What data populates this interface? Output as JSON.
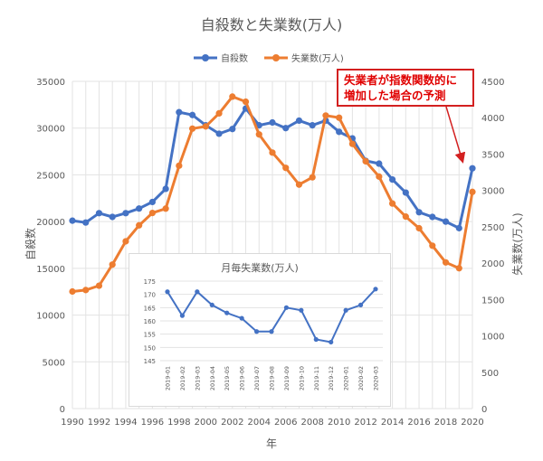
{
  "chart_data": [
    {
      "type": "line",
      "title": "自殺数と失業数(万人)",
      "xlabel": "年",
      "ylabel": "自殺数",
      "y2label": "失業数(万人)",
      "legend_position": "top",
      "grid": true,
      "x": [
        1990,
        1991,
        1992,
        1993,
        1994,
        1995,
        1996,
        1997,
        1998,
        1999,
        2000,
        2001,
        2002,
        2003,
        2004,
        2005,
        2006,
        2007,
        2008,
        2009,
        2010,
        2011,
        2012,
        2013,
        2014,
        2015,
        2016,
        2017,
        2018,
        2019,
        2020
      ],
      "x_ticks": [
        "1990",
        "1992",
        "1994",
        "1996",
        "1998",
        "2000",
        "2002",
        "2004",
        "2006",
        "2008",
        "2010",
        "2012",
        "2014",
        "2016",
        "2018",
        "2020"
      ],
      "ylim": [
        0,
        35000
      ],
      "y_ticks": [
        "0",
        "5000",
        "10000",
        "15000",
        "20000",
        "25000",
        "30000",
        "35000"
      ],
      "y2lim": [
        0,
        4500
      ],
      "y2_ticks": [
        "0",
        "500",
        "1000",
        "1500",
        "2000",
        "2500",
        "3000",
        "3500",
        "4000",
        "4500"
      ],
      "series": [
        {
          "name": "自殺数",
          "axis": "left",
          "color": "#4472c4",
          "values": [
            20100,
            19900,
            20900,
            20500,
            20900,
            21400,
            22100,
            23500,
            31700,
            31400,
            30300,
            29400,
            29900,
            32100,
            30300,
            30600,
            30000,
            30800,
            30300,
            30800,
            29600,
            28900,
            26500,
            26200,
            24500,
            23100,
            21000,
            20500,
            20000,
            19300,
            25700
          ]
        },
        {
          "name": "失業数(万人)",
          "axis": "right",
          "color": "#ed7d31",
          "values": [
            1610,
            1630,
            1690,
            1980,
            2300,
            2520,
            2690,
            2750,
            3340,
            3850,
            3880,
            4060,
            4290,
            4220,
            3770,
            3520,
            3310,
            3080,
            3180,
            4030,
            4000,
            3640,
            3400,
            3190,
            2820,
            2640,
            2480,
            2240,
            2010,
            1930,
            2980
          ]
        }
      ]
    },
    {
      "type": "line",
      "title": "月毎失業数(万人)",
      "color": "#4472c4",
      "categories": [
        "2019-01",
        "2019-02",
        "2019-03",
        "2019-04",
        "2019-05",
        "2019-06",
        "2019-07",
        "2019-08",
        "2019-09",
        "2019-10",
        "2019-11",
        "2019-12",
        "2020-01",
        "2020-02",
        "2020-03"
      ],
      "values": [
        171,
        162,
        171,
        166,
        163,
        161,
        156,
        156,
        165,
        164,
        153,
        152,
        164,
        166,
        172
      ],
      "ylim": [
        145,
        175
      ],
      "y_ticks": [
        "145",
        "150",
        "155",
        "160",
        "165",
        "170",
        "175"
      ]
    }
  ],
  "annotation": {
    "line1": "失業者が指数関数的に",
    "line2": "増加した場合の予測",
    "color": "#e00000"
  }
}
